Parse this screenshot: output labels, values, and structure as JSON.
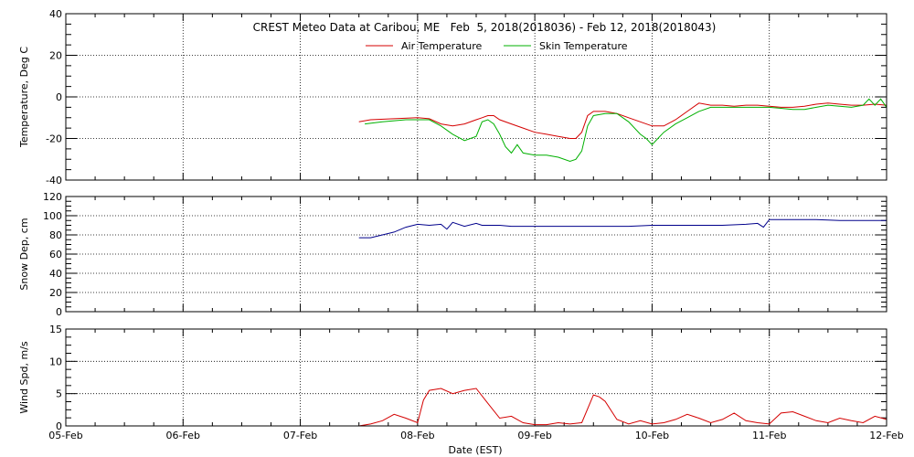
{
  "title": "CREST Meteo Data at Caribou, ME   Feb  5, 2018(2018036) - Feb 12, 2018(2018043)",
  "xlabel": "Date (EST)",
  "x_ticks": [
    "05-Feb",
    "06-Feb",
    "07-Feb",
    "08-Feb",
    "09-Feb",
    "10-Feb",
    "11-Feb",
    "12-Feb"
  ],
  "colors": {
    "air": "#d40000",
    "skin": "#00b000",
    "snow": "#00008b",
    "wind": "#d40000"
  },
  "chart_data": [
    {
      "type": "line",
      "ylabel": "Temperature, Deg C",
      "xlim": [
        0,
        7
      ],
      "ylim": [
        -40,
        40
      ],
      "yticks": [
        -40,
        -20,
        0,
        20,
        40
      ],
      "grid": true,
      "legend_position": "top-center",
      "series": [
        {
          "name": "Air Temperature",
          "color": "#d40000",
          "x": [
            2.5,
            2.6,
            2.8,
            3.0,
            3.1,
            3.2,
            3.3,
            3.4,
            3.5,
            3.55,
            3.6,
            3.65,
            3.7,
            3.8,
            3.9,
            4.0,
            4.1,
            4.2,
            4.3,
            4.35,
            4.4,
            4.45,
            4.5,
            4.6,
            4.7,
            4.8,
            4.9,
            5.0,
            5.1,
            5.2,
            5.3,
            5.4,
            5.5,
            5.6,
            5.7,
            5.8,
            5.9,
            6.0,
            6.1,
            6.2,
            6.3,
            6.4,
            6.5,
            6.6,
            6.7,
            6.8,
            6.9,
            7.0
          ],
          "y": [
            -12,
            -11,
            -10.5,
            -10,
            -10.5,
            -13,
            -14,
            -13,
            -11,
            -10,
            -9,
            -9,
            -11,
            -13,
            -15,
            -17,
            -18,
            -19,
            -20,
            -20,
            -17,
            -9,
            -7,
            -7,
            -8,
            -10,
            -12,
            -14,
            -14,
            -11,
            -7,
            -3,
            -4,
            -4,
            -4.5,
            -4,
            -4,
            -4.5,
            -5,
            -5,
            -4.5,
            -3.5,
            -3,
            -3.5,
            -4,
            -4,
            -3.5,
            -4
          ]
        },
        {
          "name": "Skin Temperature",
          "color": "#00b000",
          "x": [
            2.55,
            2.7,
            2.9,
            3.0,
            3.1,
            3.2,
            3.3,
            3.4,
            3.5,
            3.55,
            3.6,
            3.65,
            3.7,
            3.75,
            3.8,
            3.85,
            3.9,
            4.0,
            4.1,
            4.2,
            4.3,
            4.35,
            4.4,
            4.45,
            4.5,
            4.6,
            4.7,
            4.8,
            4.9,
            4.95,
            5.0,
            5.05,
            5.1,
            5.2,
            5.3,
            5.4,
            5.5,
            5.6,
            5.7,
            5.8,
            5.9,
            6.0,
            6.1,
            6.2,
            6.3,
            6.4,
            6.5,
            6.6,
            6.7,
            6.8,
            6.85,
            6.9,
            6.95,
            7.0
          ],
          "y": [
            -13,
            -12,
            -11,
            -11,
            -11,
            -14,
            -18,
            -21,
            -19,
            -12,
            -11,
            -13,
            -18,
            -24,
            -27,
            -23,
            -27,
            -28,
            -28,
            -29,
            -31,
            -30,
            -26,
            -14,
            -9,
            -8,
            -8,
            -12,
            -18,
            -20,
            -23,
            -20,
            -17,
            -13,
            -10,
            -7,
            -5,
            -5,
            -5,
            -5,
            -5,
            -5,
            -5.5,
            -6,
            -6,
            -5,
            -4,
            -4.5,
            -5,
            -4,
            -1,
            -4,
            -1,
            -5
          ]
        }
      ]
    },
    {
      "type": "line",
      "ylabel": "Snow Dep, cm",
      "xlim": [
        0,
        7
      ],
      "ylim": [
        0,
        120
      ],
      "yticks": [
        0,
        20,
        40,
        60,
        80,
        100,
        120
      ],
      "grid": true,
      "series": [
        {
          "name": "",
          "color": "#00008b",
          "x": [
            2.5,
            2.6,
            2.7,
            2.8,
            2.9,
            3.0,
            3.1,
            3.2,
            3.25,
            3.3,
            3.4,
            3.5,
            3.55,
            3.6,
            3.7,
            3.8,
            4.0,
            4.2,
            4.4,
            4.6,
            4.8,
            5.0,
            5.2,
            5.4,
            5.6,
            5.8,
            5.9,
            5.95,
            6.0,
            6.1,
            6.2,
            6.4,
            6.6,
            6.8,
            7.0
          ],
          "y": [
            77,
            77,
            80,
            83,
            88,
            91,
            90,
            91,
            86,
            93,
            89,
            92,
            90,
            90,
            90,
            89,
            89,
            89,
            89,
            89,
            89,
            90,
            90,
            90,
            90,
            91,
            92,
            88,
            96,
            96,
            96,
            96,
            95,
            95,
            95
          ]
        }
      ]
    },
    {
      "type": "line",
      "ylabel": "Wind Spd, m/s",
      "xlabel": "Date (EST)",
      "xlim": [
        0,
        7
      ],
      "ylim": [
        0,
        15
      ],
      "yticks": [
        0,
        5,
        10,
        15
      ],
      "grid": true,
      "series": [
        {
          "name": "",
          "color": "#d40000",
          "x": [
            2.5,
            2.6,
            2.7,
            2.8,
            2.9,
            3.0,
            3.05,
            3.1,
            3.2,
            3.3,
            3.4,
            3.5,
            3.6,
            3.7,
            3.8,
            3.9,
            4.0,
            4.1,
            4.2,
            4.3,
            4.4,
            4.5,
            4.55,
            4.6,
            4.7,
            4.8,
            4.9,
            5.0,
            5.1,
            5.2,
            5.3,
            5.4,
            5.5,
            5.6,
            5.7,
            5.8,
            5.9,
            6.0,
            6.1,
            6.2,
            6.3,
            6.4,
            6.5,
            6.6,
            6.7,
            6.8,
            6.9,
            7.0
          ],
          "y": [
            0,
            0.3,
            0.8,
            1.8,
            1.2,
            0.5,
            4,
            5.5,
            5.8,
            5,
            5.5,
            5.8,
            3.5,
            1.2,
            1.5,
            0.5,
            0.2,
            0.2,
            0.5,
            0.3,
            0.5,
            4.8,
            4.5,
            3.8,
            1,
            0.3,
            0.8,
            0.3,
            0.5,
            1,
            1.8,
            1.2,
            0.5,
            1,
            2,
            0.8,
            0.5,
            0.3,
            2,
            2.2,
            1.5,
            0.8,
            0.5,
            1.2,
            0.8,
            0.5,
            1.5,
            1
          ]
        }
      ]
    }
  ]
}
